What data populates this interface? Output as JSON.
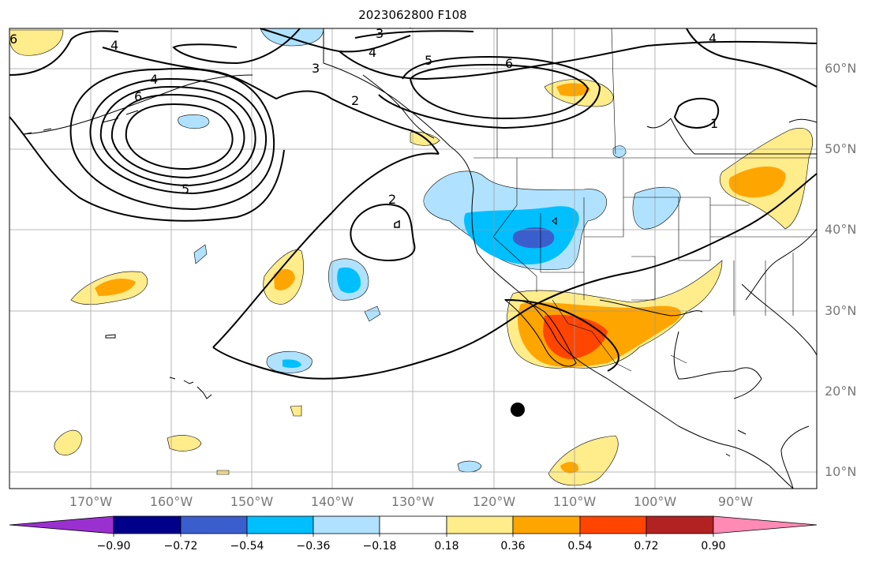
{
  "title": "2023062800 F108",
  "map": {
    "projection": "cylindrical",
    "lon_range": [
      -180,
      -80
    ],
    "lat_range": [
      8,
      66
    ],
    "gridlines": true,
    "lat_labels": [
      "60°N",
      "50°N",
      "40°N",
      "30°N",
      "20°N",
      "10°N"
    ],
    "lon_labels": [
      "170°W",
      "160°W",
      "150°W",
      "140°W",
      "130°W",
      "120°W",
      "110°W",
      "100°W",
      "90°W"
    ],
    "contour_labels": [
      "3",
      "4",
      "5",
      "6",
      "4",
      "4",
      "6",
      "3",
      "2",
      "2",
      "5",
      "6",
      "4",
      "1"
    ],
    "marker": "black-dot"
  },
  "colorbar": {
    "ticks": [
      "−0.90",
      "−0.72",
      "−0.54",
      "−0.36",
      "−0.18",
      "0.18",
      "0.36",
      "0.54",
      "0.72",
      "0.90"
    ],
    "colors": [
      "#9b30d0",
      "#00008b",
      "#3a5fcd",
      "#00bfff",
      "#b0e2ff",
      "#ffffff",
      "#ffec8b",
      "#ffa500",
      "#ff4500",
      "#b22222",
      "#ff8ab4"
    ]
  }
}
